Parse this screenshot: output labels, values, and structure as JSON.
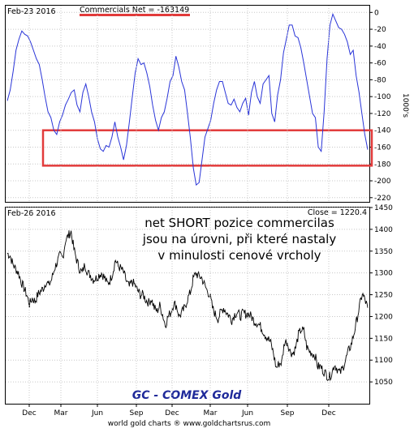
{
  "chart_data": [
    {
      "type": "line",
      "header_date": "Feb-23  2016",
      "series_label": "Commercials Net = -163149",
      "ylabel": "1000's",
      "y_ticks": [
        0,
        -20,
        -40,
        -60,
        -80,
        -100,
        -120,
        -140,
        -160,
        -180,
        -200,
        -220
      ],
      "ylim": [
        -225,
        8
      ],
      "line_color": "#2a35d8",
      "highlight_color": "#e23b3b",
      "highlight_zone": [
        -140,
        -182
      ],
      "series": [
        {
          "values": [
            -105,
            -92,
            -70,
            -45,
            -32,
            -22,
            -26,
            -28,
            -35,
            -45,
            -55,
            -62,
            -80,
            -100,
            -118,
            -125,
            -140,
            -145,
            -130,
            -122,
            -110,
            -103,
            -95,
            -92,
            -110,
            -118,
            -95,
            -85,
            -100,
            -118,
            -130,
            -150,
            -162,
            -165,
            -158,
            -160,
            -148,
            -130,
            -148,
            -160,
            -175,
            -158,
            -130,
            -100,
            -72,
            -55,
            -62,
            -60,
            -72,
            -88,
            -110,
            -128,
            -140,
            -125,
            -118,
            -102,
            -82,
            -75,
            -52,
            -65,
            -82,
            -92,
            -120,
            -150,
            -185,
            -205,
            -202,
            -175,
            -148,
            -138,
            -128,
            -108,
            -92,
            -82,
            -82,
            -95,
            -108,
            -110,
            -103,
            -113,
            -118,
            -108,
            -102,
            -122,
            -95,
            -82,
            -100,
            -108,
            -85,
            -80,
            -75,
            -120,
            -130,
            -98,
            -80,
            -48,
            -32,
            -15,
            -15,
            -28,
            -30,
            -42,
            -60,
            -80,
            -100,
            -120,
            -125,
            -160,
            -165,
            -118,
            -55,
            -15,
            -2,
            -10,
            -18,
            -20,
            -26,
            -35,
            -50,
            -45,
            -75,
            -95,
            -120,
            -145,
            -163
          ]
        }
      ]
    },
    {
      "type": "line",
      "header_date": "Feb-26  2016",
      "close_label": "Close = 1220.4",
      "y_ticks": [
        1050,
        1100,
        1150,
        1200,
        1250,
        1300,
        1350,
        1400,
        1450
      ],
      "ylim": [
        1000,
        1450
      ],
      "line_color": "#000000",
      "legend": "GC - COMEX Gold",
      "annotation": [
        "net SHORT pozice commercilas",
        "jsou na úrovni, při které nastaly",
        "v minulosti cenové vrcholy"
      ],
      "series": [
        {
          "values": [
            1345,
            1340,
            1320,
            1310,
            1300,
            1280,
            1265,
            1250,
            1228,
            1242,
            1235,
            1250,
            1258,
            1265,
            1280,
            1272,
            1285,
            1310,
            1325,
            1340,
            1335,
            1375,
            1385,
            1395,
            1355,
            1330,
            1310,
            1300,
            1320,
            1300,
            1295,
            1285,
            1288,
            1295,
            1300,
            1290,
            1276,
            1282,
            1300,
            1330,
            1315,
            1310,
            1300,
            1280,
            1268,
            1280,
            1272,
            1260,
            1250,
            1250,
            1238,
            1232,
            1240,
            1220,
            1212,
            1225,
            1205,
            1180,
            1200,
            1210,
            1230,
            1225,
            1200,
            1210,
            1220,
            1240,
            1255,
            1285,
            1300,
            1292,
            1290,
            1275,
            1260,
            1250,
            1220,
            1205,
            1195,
            1210,
            1220,
            1210,
            1202,
            1192,
            1205,
            1210,
            1200,
            1208,
            1206,
            1206,
            1200,
            1190,
            1186,
            1180,
            1170,
            1158,
            1150,
            1140,
            1115,
            1082,
            1092,
            1095,
            1142,
            1142,
            1120,
            1115,
            1128,
            1158,
            1170,
            1166,
            1130,
            1120,
            1116,
            1110,
            1085,
            1085,
            1075,
            1068,
            1060,
            1070,
            1090,
            1080,
            1070,
            1082,
            1100,
            1120,
            1135,
            1160,
            1190,
            1222,
            1252,
            1238,
            1220
          ]
        }
      ]
    }
  ],
  "x_ticks": [
    "Dec",
    "Mar",
    "Jun",
    "Sep",
    "Dec",
    "Mar",
    "Jun",
    "Sep",
    "Dec"
  ],
  "footer": "world gold charts ® www.goldchartsrus.com"
}
